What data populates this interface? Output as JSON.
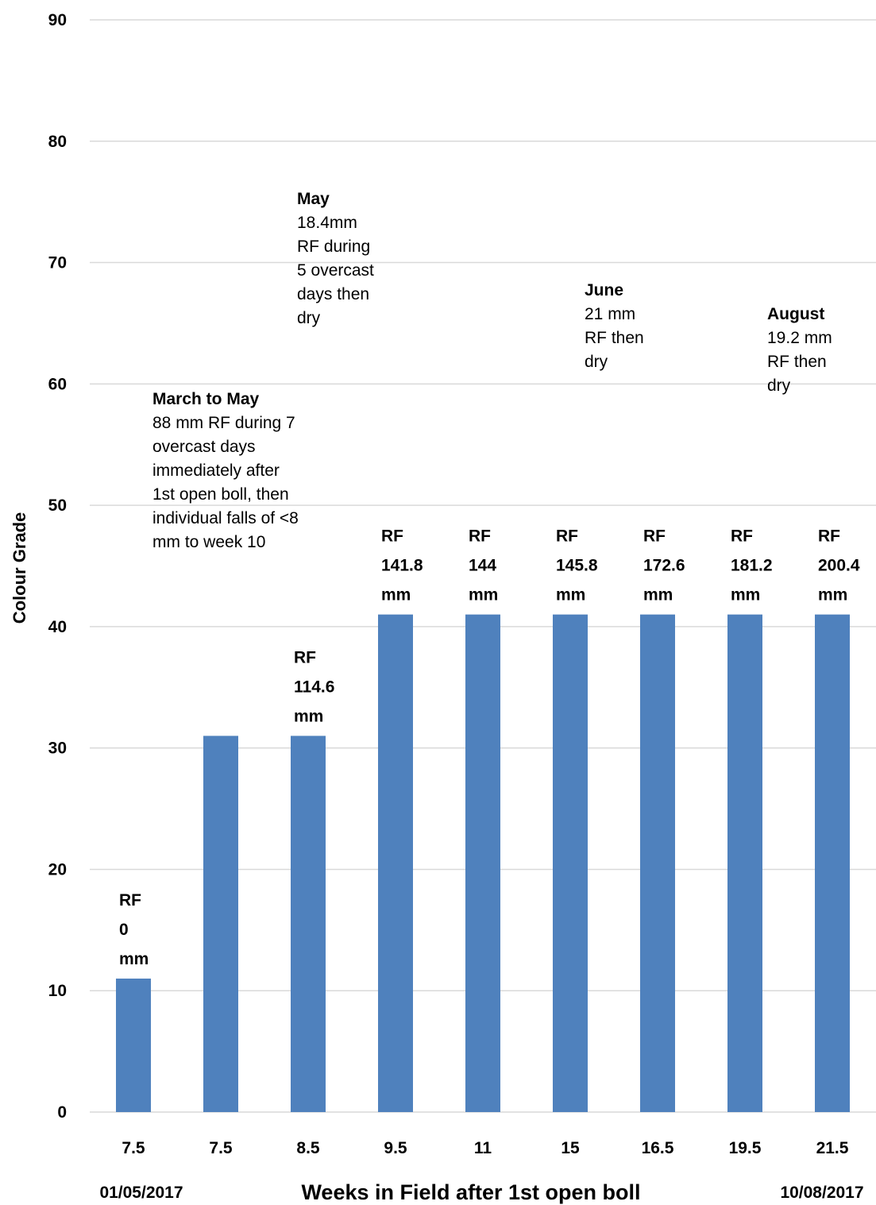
{
  "chart_data": {
    "type": "bar",
    "categories": [
      "7.5",
      "7.5",
      "8.5",
      "9.5",
      "11",
      "15",
      "16.5",
      "19.5",
      "21.5"
    ],
    "values": [
      11,
      31,
      31,
      41,
      41,
      41,
      41,
      41,
      41
    ],
    "bar_labels": [
      [
        "RF",
        "0",
        "mm"
      ],
      [],
      [
        "RF",
        "114.6",
        "mm"
      ],
      [
        "RF",
        "141.8",
        "mm"
      ],
      [
        "RF",
        "144",
        "mm"
      ],
      [
        "RF",
        "145.8",
        "mm"
      ],
      [
        "RF",
        "172.6",
        "mm"
      ],
      [
        "RF",
        "181.2",
        "mm"
      ],
      [
        "RF",
        "200.4",
        "mm"
      ]
    ],
    "xlabel": "Weeks in Field after 1st open boll",
    "ylabel": "Colour Grade",
    "ylim": [
      0,
      90
    ],
    "yticks": [
      0,
      10,
      20,
      30,
      40,
      50,
      60,
      70,
      80,
      90
    ],
    "grid": true,
    "bar_color": "#4f81bd",
    "grid_color": "#d9d9d9",
    "date_start": "01/05/2017",
    "date_end": "10/08/2017",
    "annotations": [
      {
        "title": "March to May",
        "text": "88 mm RF during 7 overcast days immediately after 1st open boll, then individual falls of <8 mm to week 10"
      },
      {
        "title": "May",
        "text": "18.4mm RF during 5 overcast days then dry"
      },
      {
        "title": "June",
        "text": "21 mm RF then dry"
      },
      {
        "title": "August",
        "text": "19.2 mm RF then dry"
      }
    ]
  }
}
